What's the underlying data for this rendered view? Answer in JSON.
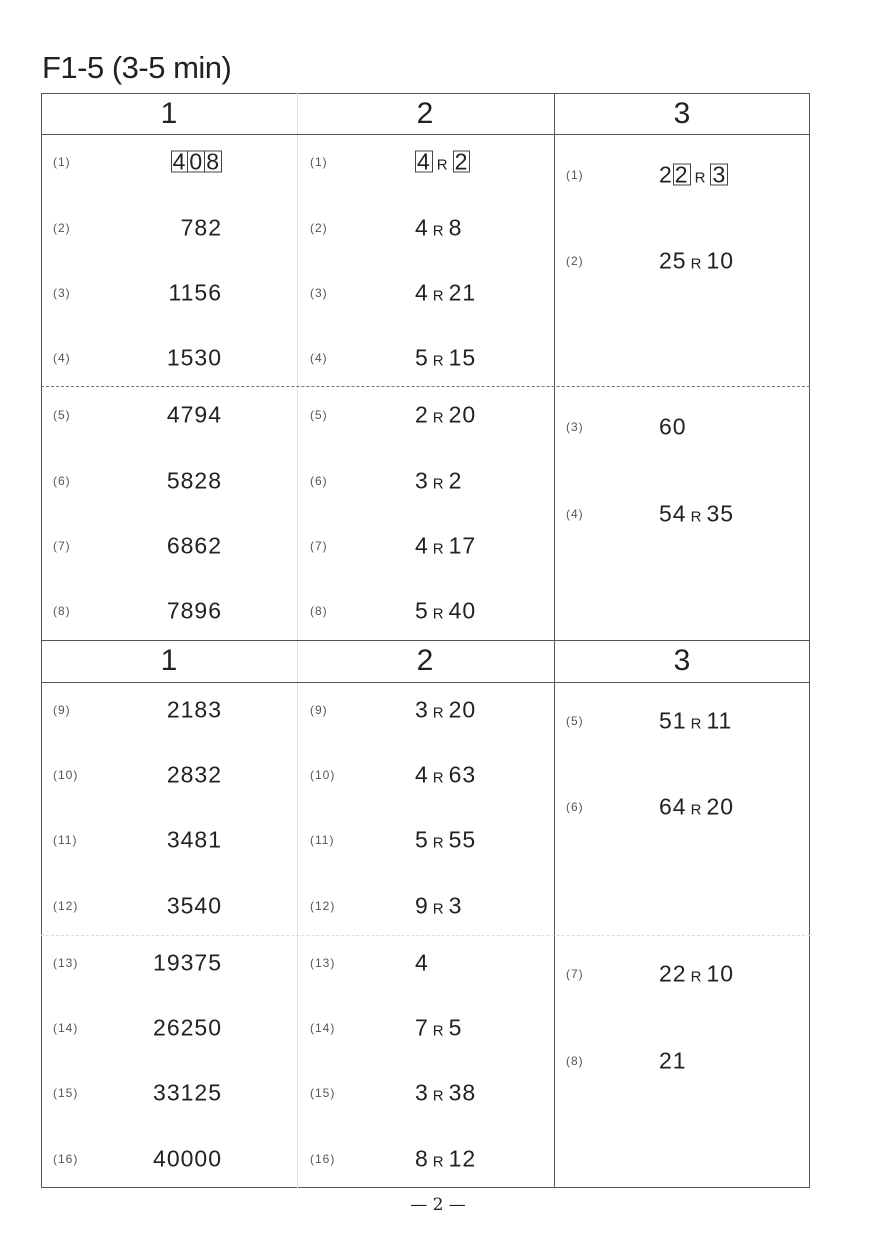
{
  "title": "F1-5 (3-5 min)",
  "headers": [
    "1",
    "2",
    "3"
  ],
  "page_number": "— 2 —",
  "col1": [
    {
      "label": "(1)",
      "answer": [
        [
          "408",
          "box3"
        ]
      ]
    },
    {
      "label": "(2)",
      "answer": [
        [
          "782",
          ""
        ]
      ]
    },
    {
      "label": "(3)",
      "answer": [
        [
          "1156",
          ""
        ]
      ]
    },
    {
      "label": "(4)",
      "answer": [
        [
          "1530",
          ""
        ]
      ]
    },
    {
      "label": "(5)",
      "answer": [
        [
          "4794",
          ""
        ]
      ]
    },
    {
      "label": "(6)",
      "answer": [
        [
          "5828",
          ""
        ]
      ]
    },
    {
      "label": "(7)",
      "answer": [
        [
          "6862",
          ""
        ]
      ]
    },
    {
      "label": "(8)",
      "answer": [
        [
          "7896",
          ""
        ]
      ]
    },
    {
      "label": "(9)",
      "answer": [
        [
          "2183",
          ""
        ]
      ]
    },
    {
      "label": "(10)",
      "answer": [
        [
          "2832",
          ""
        ]
      ]
    },
    {
      "label": "(11)",
      "answer": [
        [
          "3481",
          ""
        ]
      ]
    },
    {
      "label": "(12)",
      "answer": [
        [
          "3540",
          ""
        ]
      ]
    },
    {
      "label": "(13)",
      "answer": [
        [
          "19375",
          ""
        ]
      ]
    },
    {
      "label": "(14)",
      "answer": [
        [
          "26250",
          ""
        ]
      ]
    },
    {
      "label": "(15)",
      "answer": [
        [
          "33125",
          ""
        ]
      ]
    },
    {
      "label": "(16)",
      "answer": [
        [
          "40000",
          ""
        ]
      ]
    }
  ],
  "col2": [
    {
      "label": "(1)",
      "answer": [
        [
          "4",
          "box"
        ],
        [
          "R",
          "R"
        ],
        [
          "2",
          "box"
        ]
      ]
    },
    {
      "label": "(2)",
      "answer": [
        [
          "4",
          ""
        ],
        [
          "R",
          "R"
        ],
        [
          "8",
          ""
        ]
      ]
    },
    {
      "label": "(3)",
      "answer": [
        [
          "4",
          ""
        ],
        [
          "R",
          "R"
        ],
        [
          "21",
          ""
        ]
      ]
    },
    {
      "label": "(4)",
      "answer": [
        [
          "5",
          ""
        ],
        [
          "R",
          "R"
        ],
        [
          "15",
          ""
        ]
      ]
    },
    {
      "label": "(5)",
      "answer": [
        [
          "2",
          ""
        ],
        [
          "R",
          "R"
        ],
        [
          "20",
          ""
        ]
      ]
    },
    {
      "label": "(6)",
      "answer": [
        [
          "3",
          ""
        ],
        [
          "R",
          "R"
        ],
        [
          "2",
          ""
        ]
      ]
    },
    {
      "label": "(7)",
      "answer": [
        [
          "4",
          ""
        ],
        [
          "R",
          "R"
        ],
        [
          "17",
          ""
        ]
      ]
    },
    {
      "label": "(8)",
      "answer": [
        [
          "5",
          ""
        ],
        [
          "R",
          "R"
        ],
        [
          "40",
          ""
        ]
      ]
    },
    {
      "label": "(9)",
      "answer": [
        [
          "3",
          ""
        ],
        [
          "R",
          "R"
        ],
        [
          "20",
          ""
        ]
      ]
    },
    {
      "label": "(10)",
      "answer": [
        [
          "4",
          ""
        ],
        [
          "R",
          "R"
        ],
        [
          "63",
          ""
        ]
      ]
    },
    {
      "label": "(11)",
      "answer": [
        [
          "5",
          ""
        ],
        [
          "R",
          "R"
        ],
        [
          "55",
          ""
        ]
      ]
    },
    {
      "label": "(12)",
      "answer": [
        [
          "9",
          ""
        ],
        [
          "R",
          "R"
        ],
        [
          "3",
          ""
        ]
      ]
    },
    {
      "label": "(13)",
      "answer": [
        [
          "4",
          ""
        ]
      ]
    },
    {
      "label": "(14)",
      "answer": [
        [
          "7",
          ""
        ],
        [
          "R",
          "R"
        ],
        [
          "5",
          ""
        ]
      ]
    },
    {
      "label": "(15)",
      "answer": [
        [
          "3",
          ""
        ],
        [
          "R",
          "R"
        ],
        [
          "38",
          ""
        ]
      ]
    },
    {
      "label": "(16)",
      "answer": [
        [
          "8",
          ""
        ],
        [
          "R",
          "R"
        ],
        [
          "12",
          ""
        ]
      ]
    }
  ],
  "col3": [
    {
      "label": "(1)",
      "answer": [
        [
          "2",
          ""
        ],
        [
          "2",
          "box"
        ],
        [
          "R",
          "R"
        ],
        [
          "3",
          "box"
        ]
      ]
    },
    {
      "label": "(2)",
      "answer": [
        [
          "25",
          ""
        ],
        [
          "R",
          "R"
        ],
        [
          "10",
          ""
        ]
      ]
    },
    {
      "label": "(3)",
      "answer": [
        [
          "60",
          ""
        ]
      ]
    },
    {
      "label": "(4)",
      "answer": [
        [
          "54",
          ""
        ],
        [
          "R",
          "R"
        ],
        [
          "35",
          ""
        ]
      ]
    },
    {
      "label": "(5)",
      "answer": [
        [
          "51",
          ""
        ],
        [
          "R",
          "R"
        ],
        [
          "11",
          ""
        ]
      ]
    },
    {
      "label": "(6)",
      "answer": [
        [
          "64",
          ""
        ],
        [
          "R",
          "R"
        ],
        [
          "20",
          ""
        ]
      ]
    },
    {
      "label": "(7)",
      "answer": [
        [
          "22",
          ""
        ],
        [
          "R",
          "R"
        ],
        [
          "10",
          ""
        ]
      ]
    },
    {
      "label": "(8)",
      "answer": [
        [
          "21",
          ""
        ]
      ]
    }
  ]
}
